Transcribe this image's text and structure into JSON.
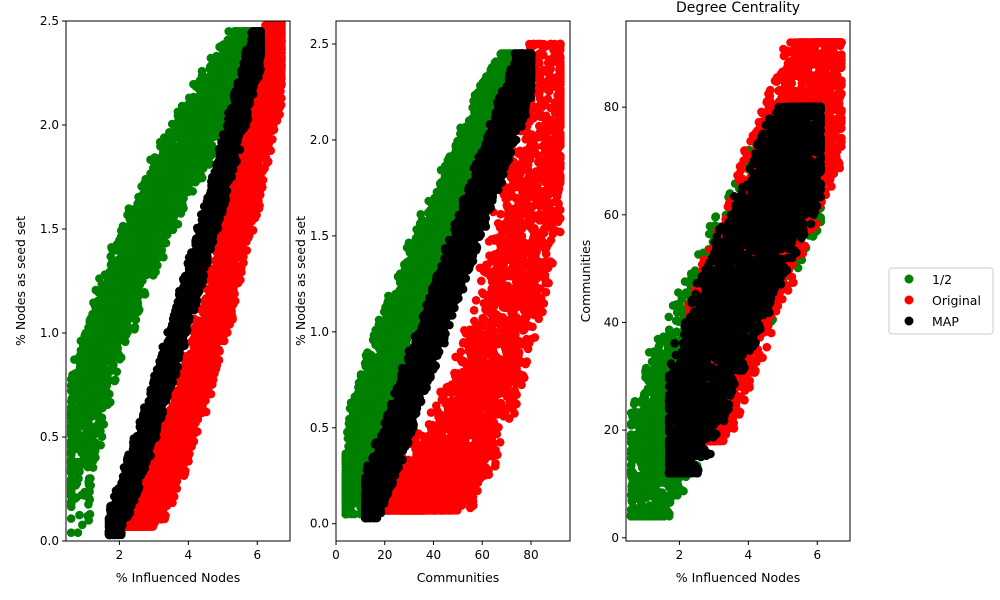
{
  "figure": {
    "legend": {
      "placement": "center-right, outside plots",
      "entries": [
        {
          "label": "1/2",
          "color": "#008000"
        },
        {
          "label": "Original",
          "color": "#ff0000"
        },
        {
          "label": "MAP",
          "color": "#000000"
        }
      ]
    }
  },
  "chart_data": [
    {
      "type": "scatter",
      "title": "",
      "xlabel": "% Influenced Nodes",
      "ylabel": "% Nodes as seed set",
      "xlim": [
        0.45,
        6.95
      ],
      "ylim": [
        0.0,
        2.5
      ],
      "xticks": [
        2,
        4,
        6
      ],
      "yticks": [
        0.0,
        0.5,
        1.0,
        1.5,
        2.0,
        2.5
      ],
      "tick_decimals_y": 1,
      "grid": false,
      "series": [
        {
          "name": "1/2",
          "color": "#008000",
          "x_range": [
            0.6,
            6.1
          ],
          "y_range": [
            0.04,
            2.45
          ],
          "points": 3000
        },
        {
          "name": "Original",
          "color": "#ff0000",
          "x_range": [
            2.2,
            6.7
          ],
          "y_range": [
            0.07,
            2.5
          ],
          "points": 3000
        },
        {
          "name": "MAP",
          "color": "#000000",
          "x_range": [
            1.7,
            6.1
          ],
          "y_range": [
            0.03,
            2.45
          ],
          "points": 3000
        }
      ]
    },
    {
      "type": "scatter",
      "title": "",
      "xlabel": "Communities",
      "ylabel": "% Nodes as seed set",
      "xlim": [
        0,
        96
      ],
      "ylim": [
        -0.09,
        2.62
      ],
      "xticks": [
        0,
        20,
        40,
        60,
        80
      ],
      "yticks": [
        0.0,
        0.5,
        1.0,
        1.5,
        2.0,
        2.5
      ],
      "tick_decimals_y": 1,
      "grid": false,
      "series": [
        {
          "name": "1/2",
          "color": "#008000",
          "x_range": [
            4,
            76
          ],
          "y_range": [
            0.05,
            2.45
          ],
          "points": 3000
        },
        {
          "name": "Original",
          "color": "#ff0000",
          "x_range": [
            18,
            92
          ],
          "y_range": [
            0.07,
            2.5
          ],
          "points": 3000
        },
        {
          "name": "MAP",
          "color": "#000000",
          "x_range": [
            12,
            80
          ],
          "y_range": [
            0.03,
            2.45
          ],
          "points": 3000
        }
      ]
    },
    {
      "type": "scatter",
      "title": "Degree Centrality",
      "xlabel": "% Influenced Nodes",
      "ylabel": "Communities",
      "xlim": [
        0.45,
        6.95
      ],
      "ylim": [
        -0.6,
        96.0
      ],
      "xticks": [
        2,
        4,
        6
      ],
      "yticks": [
        0,
        20,
        40,
        60,
        80
      ],
      "tick_decimals_y": 0,
      "grid": false,
      "series": [
        {
          "name": "1/2",
          "color": "#008000",
          "x_range": [
            0.6,
            6.1
          ],
          "y_range": [
            4,
            76
          ],
          "points": 3000
        },
        {
          "name": "Original",
          "color": "#ff0000",
          "x_range": [
            2.2,
            6.7
          ],
          "y_range": [
            18,
            92
          ],
          "points": 3000
        },
        {
          "name": "MAP",
          "color": "#000000",
          "x_range": [
            1.7,
            6.1
          ],
          "y_range": [
            12,
            80
          ],
          "points": 3000
        }
      ]
    }
  ]
}
